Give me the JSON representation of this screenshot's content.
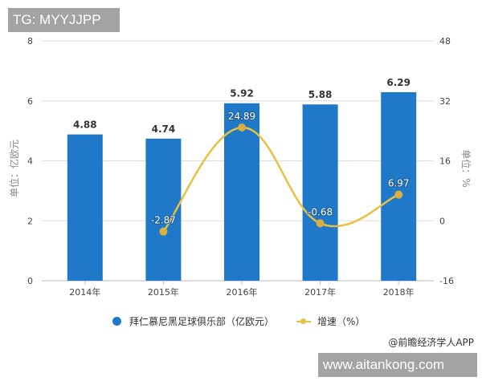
{
  "overlay": {
    "top_badge": "TG: MYYJJPP",
    "bottom_badge": "www.aitankong.com"
  },
  "axes": {
    "left_title": "单位：亿欧元",
    "right_title": "单位：%",
    "left_ticks": [
      "8",
      "6",
      "4",
      "2",
      "0"
    ],
    "right_ticks": [
      "48",
      "32",
      "16",
      "0",
      "-16"
    ]
  },
  "legend": {
    "bar_label": "拜仁慕尼黑足球俱乐部（亿欧元）",
    "line_label": "增速（%）"
  },
  "source": "@前瞻经济学人APP",
  "colors": {
    "bar": "#1f78c8",
    "line": "#e8c040",
    "grid": "#dddddd"
  },
  "chart_data": {
    "type": "bar",
    "title": "",
    "categories": [
      "2014年",
      "2015年",
      "2016年",
      "2017年",
      "2018年"
    ],
    "series": [
      {
        "name": "拜仁慕尼黑足球俱乐部（亿欧元）",
        "type": "bar",
        "axis": "left",
        "values": [
          4.88,
          4.74,
          5.92,
          5.88,
          6.29
        ],
        "labels": [
          "4.88",
          "4.74",
          "5.92",
          "5.88",
          "6.29"
        ]
      },
      {
        "name": "增速（%）",
        "type": "line",
        "axis": "right",
        "values": [
          null,
          -2.87,
          24.89,
          -0.68,
          6.97
        ],
        "labels": [
          "",
          "-2.87",
          "24.89",
          "-0.68",
          "6.97"
        ]
      }
    ],
    "xlabel": "",
    "ylabel": "单位：亿欧元",
    "y2label": "单位：%",
    "ylim": [
      0,
      8
    ],
    "y2lim": [
      -16,
      48
    ],
    "grid": true,
    "legend_position": "bottom"
  }
}
